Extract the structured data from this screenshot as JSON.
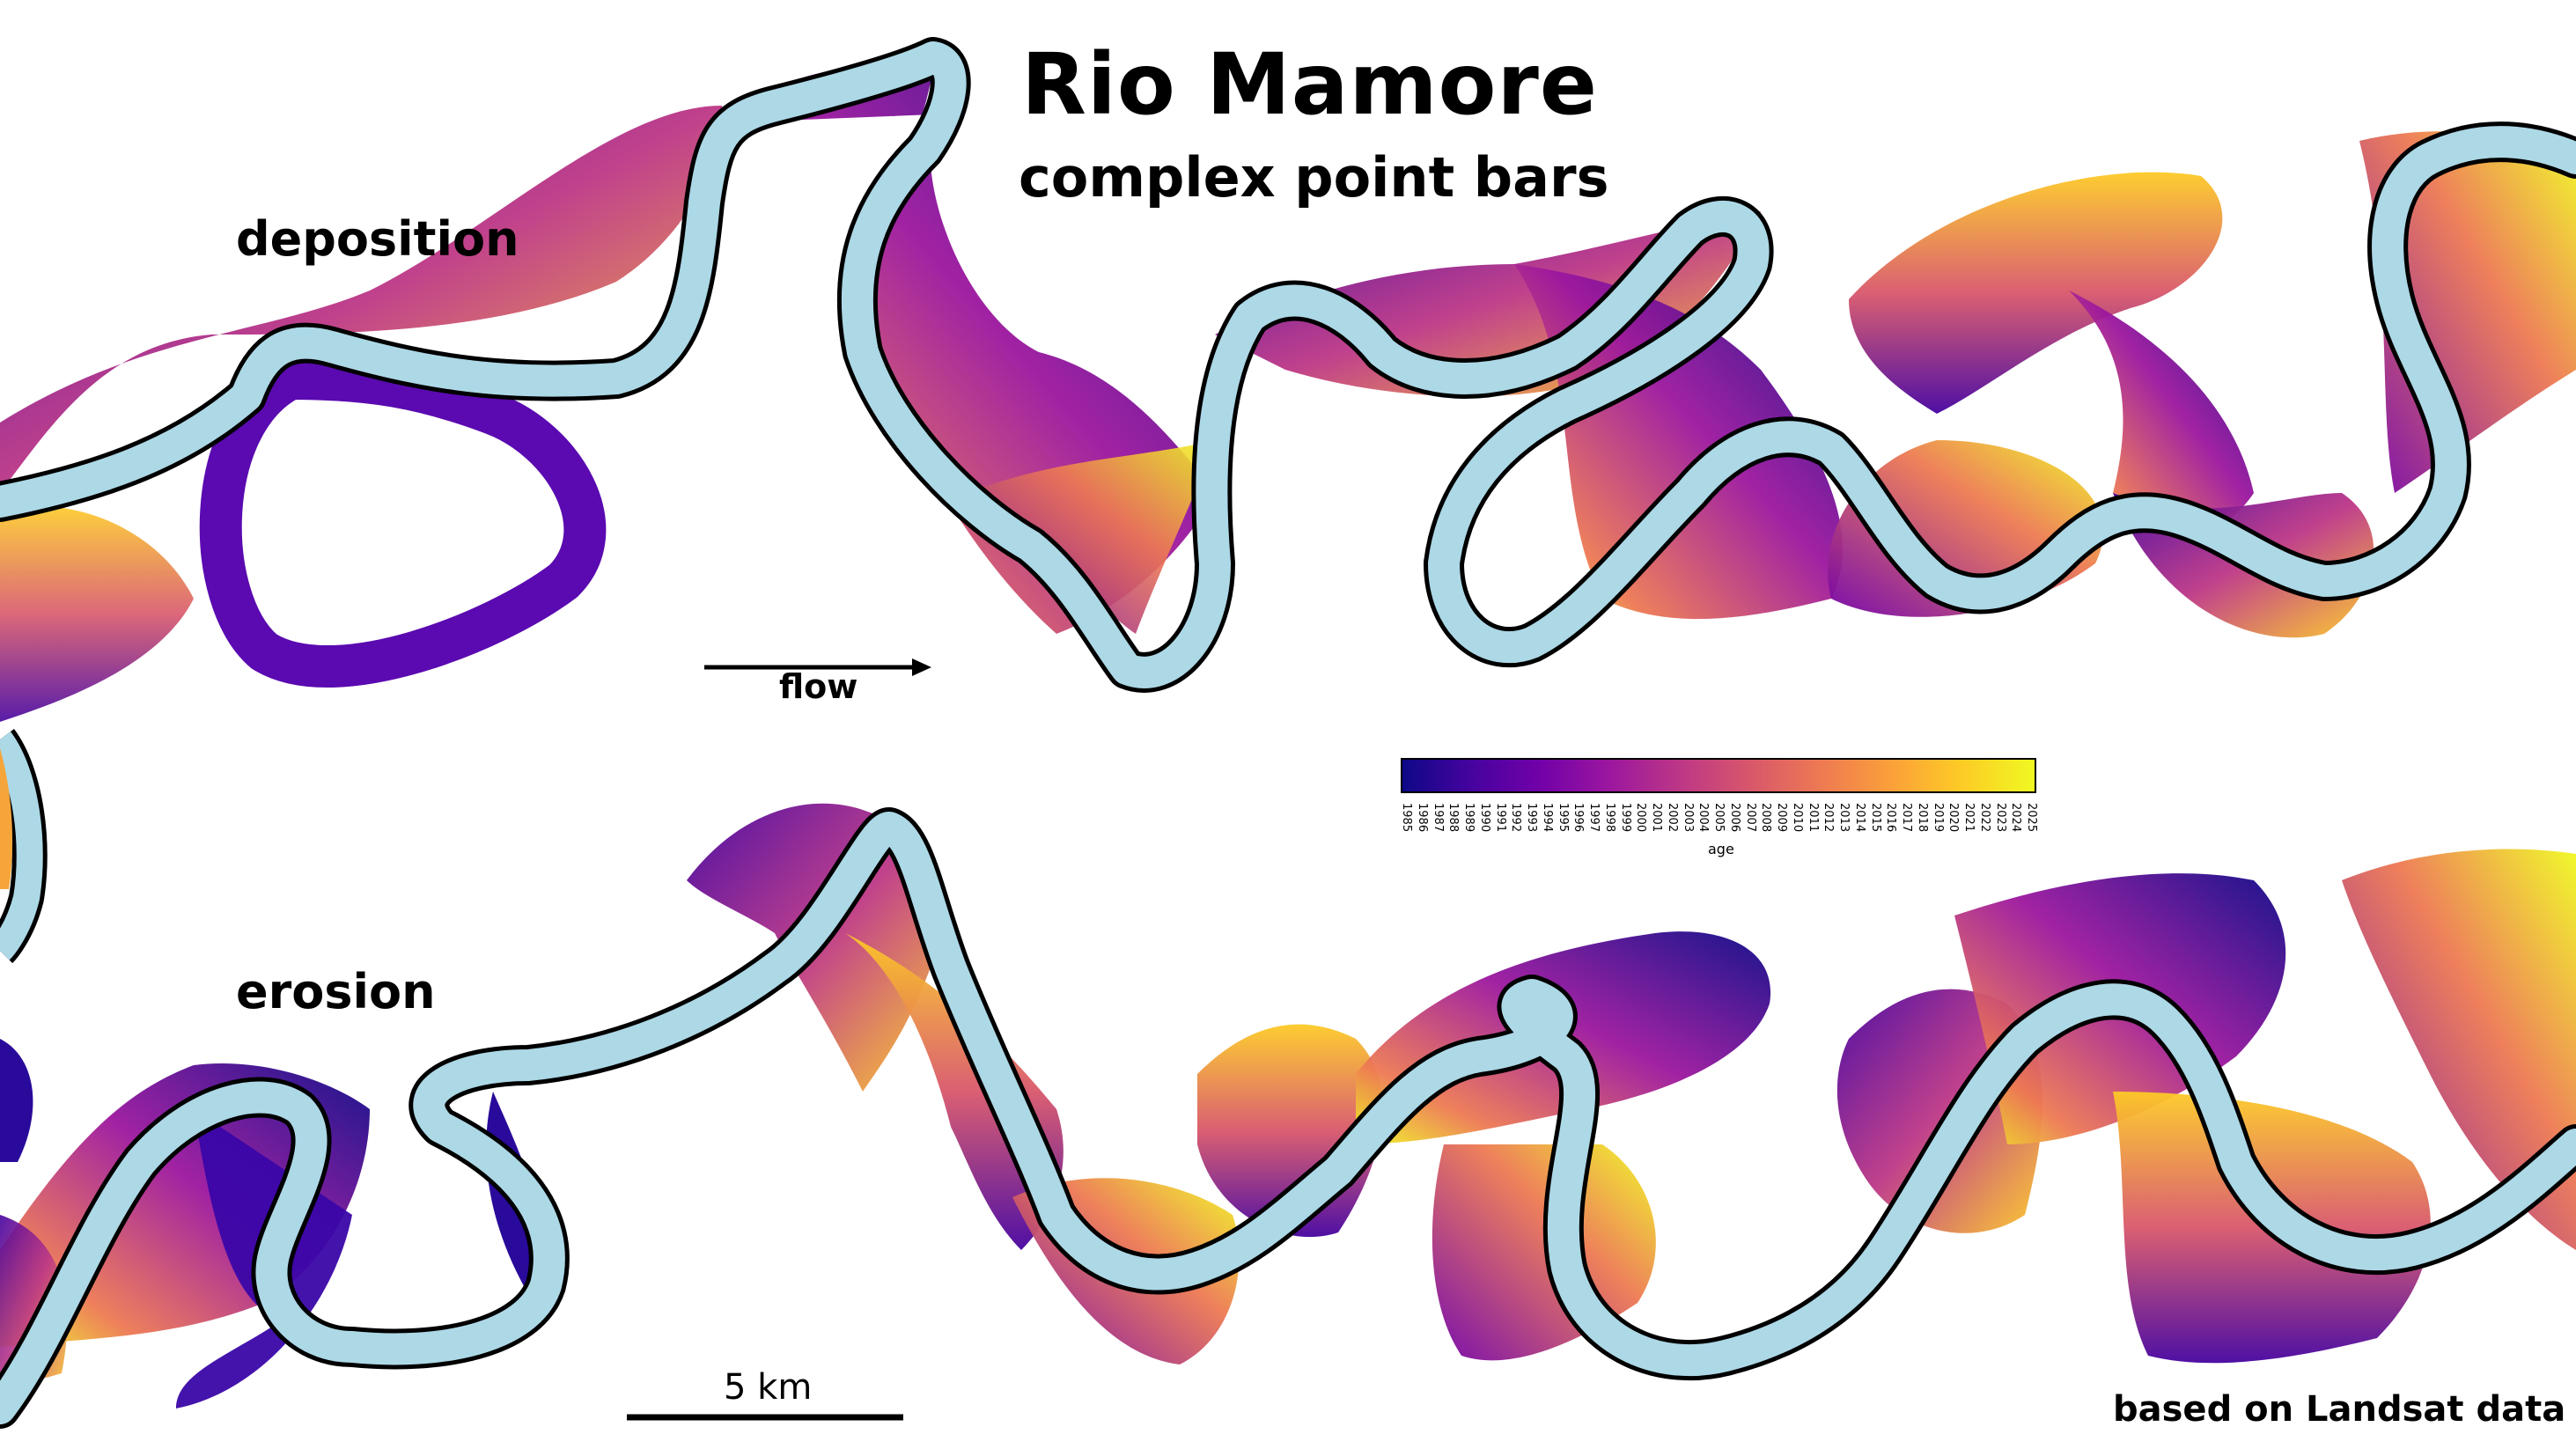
{
  "title": "Rio Mamore",
  "subtitle": "complex point bars",
  "panels": {
    "top_label": "deposition",
    "bottom_label": "erosion"
  },
  "flow_label": "flow",
  "scale_bar_label": "5 km",
  "credit": "based on Landsat data",
  "colorbar": {
    "label": "age",
    "colormap": "plasma",
    "ticks": [
      "1985",
      "1986",
      "1987",
      "1988",
      "1989",
      "1990",
      "1991",
      "1992",
      "1993",
      "1994",
      "1995",
      "1996",
      "1997",
      "1998",
      "1999",
      "2000",
      "2001",
      "2002",
      "2003",
      "2004",
      "2005",
      "2006",
      "2007",
      "2008",
      "2009",
      "2010",
      "2011",
      "2012",
      "2013",
      "2014",
      "2015",
      "2016",
      "2017",
      "2018",
      "2019",
      "2020",
      "2021",
      "2022",
      "2023",
      "2024",
      "2025"
    ]
  },
  "colors": {
    "channel": "#add8e6",
    "outline": "#000000",
    "plasma": [
      "#0d0887",
      "#46039f",
      "#7201a8",
      "#9c179e",
      "#bd3786",
      "#d8576b",
      "#ed7953",
      "#fb9f3a",
      "#fdca26",
      "#f0f921"
    ]
  }
}
